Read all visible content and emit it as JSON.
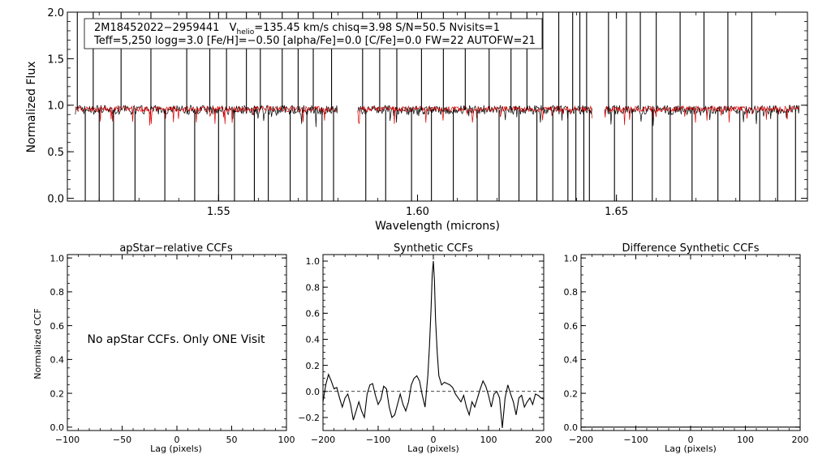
{
  "chart_data": [
    {
      "type": "line",
      "id": "spectrum",
      "ylabel": "Normalized Flux",
      "xlabel": "Wavelength (microns)",
      "xlim": [
        1.512,
        1.698
      ],
      "ylim": [
        -0.03,
        2.0
      ],
      "xticks": [
        1.55,
        1.6,
        1.65
      ],
      "xtick_labels": [
        "1.55",
        "1.60",
        "1.65"
      ],
      "yticks": [
        0.0,
        0.5,
        1.0,
        1.5,
        2.0
      ],
      "ytick_labels": [
        "0.0",
        "0.5",
        "1.0",
        "1.5",
        "2.0"
      ],
      "header": {
        "star_id": "2M18452022−2959441",
        "v_label": "V",
        "v_sub": "helio",
        "v_rest": "=135.45 km/s  chisq=3.98  S/N=50.5  Nvisits=1",
        "params": "Teff=5,250 logg=3.0 [Fe/H]=−0.50 [alpha/Fe]=0.0 [C/Fe]=0.0 FW=22 AUTOFW=21"
      },
      "chips": [
        [
          1.514,
          1.58
        ],
        [
          1.585,
          1.644
        ],
        [
          1.647,
          1.696
        ]
      ],
      "series_colors": {
        "observed": "#000000",
        "model": "#dd0000"
      },
      "observed_level": 0.95,
      "model_level": 0.96,
      "observed_noise": 0.05,
      "model_noise": 0.03,
      "spikes_up": [
        1.5145,
        1.5185,
        1.5255,
        1.533,
        1.542,
        1.5478,
        1.552,
        1.557,
        1.5605,
        1.566,
        1.57,
        1.5738,
        1.5784,
        1.5862,
        1.5905,
        1.5948,
        1.601,
        1.6065,
        1.612,
        1.618,
        1.6235,
        1.6275,
        1.6315,
        1.6355,
        1.639,
        1.6408,
        1.6425,
        1.648,
        1.6525,
        1.656,
        1.66,
        1.666,
        1.672,
        1.678,
        1.684
      ],
      "spikes_down": [
        1.5165,
        1.52,
        1.5236,
        1.529,
        1.5365,
        1.544,
        1.55,
        1.554,
        1.559,
        1.5625,
        1.568,
        1.5722,
        1.576,
        1.5789,
        1.587,
        1.592,
        1.5985,
        1.6035,
        1.609,
        1.615,
        1.6205,
        1.6255,
        1.63,
        1.634,
        1.6378,
        1.6398,
        1.6418,
        1.6432,
        1.6495,
        1.654,
        1.659,
        1.6635,
        1.669,
        1.6755,
        1.681,
        1.686,
        1.6905,
        1.695
      ]
    },
    {
      "type": "line",
      "id": "apstar_ccf",
      "title": "apStar−relative CCFs",
      "xlabel": "Lag (pixels)",
      "ylabel": "Normalized CCF",
      "xlim": [
        -100,
        100
      ],
      "ylim": [
        -0.02,
        1.02
      ],
      "xticks": [
        -100,
        -50,
        0,
        50,
        100
      ],
      "xtick_labels": [
        "−100",
        "−50",
        "0",
        "50",
        "100"
      ],
      "yticks": [
        0.0,
        0.2,
        0.4,
        0.6,
        0.8,
        1.0
      ],
      "ytick_labels": [
        "0.0",
        "0.2",
        "0.4",
        "0.6",
        "0.8",
        "1.0"
      ],
      "message": "No apStar CCFs.  Only ONE Visit",
      "series": []
    },
    {
      "type": "line",
      "id": "synthetic_ccf",
      "title": "Synthetic CCFs",
      "xlabel": "Lag (pixels)",
      "xlim": [
        -200,
        200
      ],
      "ylim": [
        -0.3,
        1.05
      ],
      "xticks": [
        -200,
        -100,
        0,
        100,
        200
      ],
      "xtick_labels": [
        "−200",
        "−100",
        "0",
        "100",
        "200"
      ],
      "yticks": [
        -0.2,
        0.0,
        0.2,
        0.4,
        0.6,
        0.8,
        1.0
      ],
      "ytick_labels": [
        "−0.2",
        "0.0",
        "0.2",
        "0.4",
        "0.6",
        "0.8",
        "1.0"
      ],
      "reference_line": 0.0,
      "series": [
        {
          "x": [
            -200,
            -195,
            -190,
            -185,
            -180,
            -175,
            -170,
            -165,
            -160,
            -155,
            -150,
            -145,
            -140,
            -135,
            -130,
            -125,
            -120,
            -115,
            -110,
            -105,
            -100,
            -95,
            -90,
            -85,
            -80,
            -75,
            -70,
            -65,
            -60,
            -55,
            -50,
            -45,
            -40,
            -35,
            -30,
            -25,
            -20,
            -15,
            -10,
            -7,
            -4,
            -2,
            0,
            2,
            4,
            7,
            10,
            15,
            20,
            25,
            30,
            35,
            40,
            45,
            50,
            55,
            60,
            65,
            70,
            75,
            80,
            85,
            90,
            95,
            100,
            105,
            110,
            115,
            120,
            125,
            130,
            135,
            140,
            145,
            150,
            155,
            160,
            165,
            170,
            175,
            180,
            185,
            190,
            195,
            200
          ],
          "y": [
            -0.08,
            0.05,
            0.13,
            0.08,
            0.02,
            0.03,
            -0.05,
            -0.12,
            -0.05,
            -0.02,
            -0.1,
            -0.22,
            -0.15,
            -0.08,
            -0.15,
            -0.2,
            -0.02,
            0.05,
            0.06,
            -0.03,
            -0.1,
            -0.06,
            0.04,
            0.02,
            -0.12,
            -0.2,
            -0.18,
            -0.1,
            -0.02,
            -0.1,
            -0.15,
            -0.08,
            0.05,
            0.1,
            0.12,
            0.08,
            -0.03,
            -0.12,
            0.12,
            0.35,
            0.65,
            0.9,
            1.0,
            0.85,
            0.55,
            0.3,
            0.12,
            0.05,
            0.07,
            0.06,
            0.05,
            0.03,
            -0.02,
            -0.05,
            -0.08,
            -0.03,
            -0.12,
            -0.18,
            -0.08,
            -0.12,
            -0.05,
            0.02,
            0.08,
            0.04,
            -0.03,
            -0.12,
            -0.02,
            0.0,
            -0.05,
            -0.28,
            -0.05,
            0.05,
            -0.02,
            -0.08,
            -0.18,
            -0.05,
            -0.03,
            -0.12,
            -0.08,
            -0.05,
            -0.1,
            -0.02,
            -0.03,
            -0.05,
            -0.06
          ]
        }
      ]
    },
    {
      "type": "line",
      "id": "difference_ccf",
      "title": "Difference Synthetic CCFs",
      "xlabel": "Lag (pixels)",
      "xlim": [
        -200,
        200
      ],
      "ylim": [
        -0.02,
        1.02
      ],
      "xticks": [
        -200,
        -100,
        0,
        100,
        200
      ],
      "xtick_labels": [
        "−200",
        "−100",
        "0",
        "100",
        "200"
      ],
      "yticks": [
        0.0,
        0.2,
        0.4,
        0.6,
        0.8,
        1.0
      ],
      "ytick_labels": [
        "0.0",
        "0.2",
        "0.4",
        "0.6",
        "0.8",
        "1.0"
      ],
      "series": [
        {
          "x": [
            -200,
            200
          ],
          "y": [
            0.0,
            0.0
          ]
        }
      ]
    }
  ]
}
